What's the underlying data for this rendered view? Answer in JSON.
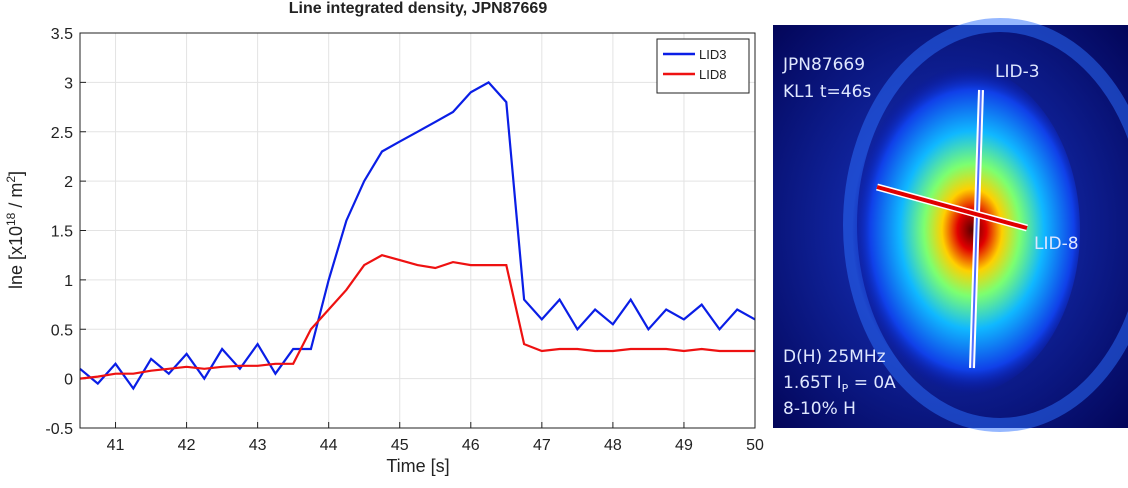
{
  "chart_data": {
    "type": "line",
    "title": "Line integrated density, JPN87669",
    "x_label": "Time [s]",
    "y_label": [
      "lne [x10",
      "18",
      " / m",
      "2",
      "]"
    ],
    "x": [
      40.5,
      40.75,
      41,
      41.25,
      41.5,
      41.75,
      42,
      42.25,
      42.5,
      42.75,
      43,
      43.25,
      43.5,
      43.75,
      44,
      44.25,
      44.5,
      44.75,
      45,
      45.25,
      45.5,
      45.75,
      46,
      46.25,
      46.5,
      46.75,
      47,
      47.25,
      47.5,
      47.75,
      48,
      48.25,
      48.5,
      48.75,
      49,
      49.25,
      49.5,
      49.75,
      50
    ],
    "series": [
      {
        "name": "LID3",
        "color": "#0a1ee6",
        "values": [
          0.1,
          -0.05,
          0.15,
          -0.1,
          0.2,
          0.05,
          0.25,
          0.0,
          0.3,
          0.1,
          0.35,
          0.05,
          0.3,
          0.3,
          1.0,
          1.6,
          2.0,
          2.3,
          2.4,
          2.5,
          2.6,
          2.7,
          2.9,
          3.0,
          2.8,
          0.8,
          0.6,
          0.8,
          0.5,
          0.7,
          0.55,
          0.8,
          0.5,
          0.7,
          0.6,
          0.75,
          0.5,
          0.7,
          0.6
        ]
      },
      {
        "name": "LID8",
        "color": "#ee1111",
        "values": [
          0.0,
          0.02,
          0.05,
          0.05,
          0.08,
          0.1,
          0.12,
          0.1,
          0.12,
          0.13,
          0.13,
          0.15,
          0.15,
          0.5,
          0.7,
          0.9,
          1.15,
          1.25,
          1.2,
          1.15,
          1.12,
          1.18,
          1.15,
          1.15,
          1.15,
          0.35,
          0.28,
          0.3,
          0.3,
          0.28,
          0.28,
          0.3,
          0.3,
          0.3,
          0.28,
          0.3,
          0.28,
          0.28,
          0.28
        ]
      }
    ],
    "xlim": [
      40.5,
      50
    ],
    "xticks": [
      41,
      42,
      43,
      44,
      45,
      46,
      47,
      48,
      49,
      50
    ],
    "ylim": [
      -0.5,
      3.5
    ],
    "yticks": [
      -0.5,
      0,
      0.5,
      1,
      1.5,
      2,
      2.5,
      3,
      3.5
    ],
    "grid": true,
    "legend": "northeast"
  },
  "image": {
    "labels": [
      "JPN87669",
      "KL1 t=46s",
      "LID-3",
      "LID-8",
      "D(H) 25MHz",
      "1.65T I",
      "P",
      " = 0A",
      "8-10% H"
    ]
  }
}
